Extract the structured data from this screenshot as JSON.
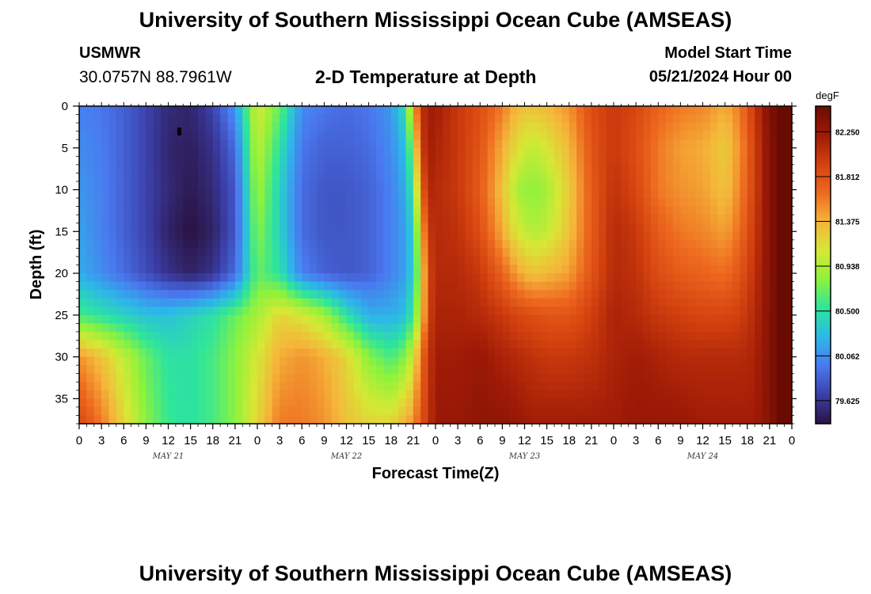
{
  "header": {
    "title": "University of Southern Mississippi Ocean Cube (AMSEAS)",
    "station": "USMWR",
    "coords": "30.0757N  88.7961W",
    "subtitle": "2-D Temperature at Depth",
    "start_label": "Model Start Time",
    "start_value": "05/21/2024 Hour 00"
  },
  "footer": {
    "title": "University of Southern Mississippi Ocean Cube (AMSEAS)"
  },
  "chart_data": {
    "type": "heatmap",
    "title": "2-D Temperature at Depth",
    "xlabel": "Forecast Time(Z)",
    "ylabel": "Depth (ft)",
    "units": "degF",
    "x_range_hours": [
      0,
      96
    ],
    "y_range_ft": [
      0,
      38
    ],
    "x_tick_labels": [
      "0",
      "3",
      "6",
      "9",
      "12",
      "15",
      "18",
      "21",
      "0",
      "3",
      "6",
      "9",
      "12",
      "15",
      "18",
      "21",
      "0",
      "3",
      "6",
      "9",
      "12",
      "15",
      "18",
      "21",
      "0",
      "3",
      "6",
      "9",
      "12",
      "15",
      "18",
      "21",
      "0"
    ],
    "y_tick_labels": [
      "0",
      "5",
      "10",
      "15",
      "20",
      "25",
      "30",
      "35"
    ],
    "y_tick_values": [
      0,
      5,
      10,
      15,
      20,
      25,
      30,
      35
    ],
    "day_labels": [
      {
        "label": "MAY 21",
        "hour": 12
      },
      {
        "label": "MAY 22",
        "hour": 36
      },
      {
        "label": "MAY 23",
        "hour": 60
      },
      {
        "label": "MAY 24",
        "hour": 84
      }
    ],
    "colorbar": {
      "unit": "degF",
      "vmin": 79.4,
      "vmax": 82.5,
      "tick_values": [
        82.25,
        81.812,
        81.375,
        80.938,
        80.5,
        80.062,
        79.625
      ],
      "tick_labels": [
        "82.250",
        "81.812",
        "81.375",
        "80.938",
        "80.500",
        "80.062",
        "79.625"
      ],
      "colors": [
        "#2a1240",
        "#3b3fa8",
        "#4a79f0",
        "#2cb8e8",
        "#2ee59c",
        "#8ef23c",
        "#d6e835",
        "#f5b53a",
        "#ee6a1f",
        "#d3410f",
        "#9e1a06",
        "#6a0b03"
      ]
    },
    "time_profiles": [
      {
        "hour": 0,
        "values": [
          80.0,
          80.05,
          80.1,
          80.15,
          80.2,
          80.6,
          81.5,
          81.9
        ]
      },
      {
        "hour": 3,
        "values": [
          79.95,
          79.98,
          80.0,
          80.0,
          80.05,
          80.5,
          81.3,
          81.6
        ]
      },
      {
        "hour": 6,
        "values": [
          79.85,
          79.85,
          79.85,
          79.85,
          79.9,
          80.4,
          81.0,
          81.2
        ]
      },
      {
        "hour": 9,
        "values": [
          79.7,
          79.7,
          79.7,
          79.7,
          79.75,
          80.3,
          80.7,
          80.8
        ]
      },
      {
        "hour": 12,
        "values": [
          79.55,
          79.52,
          79.55,
          79.5,
          79.6,
          80.3,
          80.5,
          80.55
        ]
      },
      {
        "hour": 15,
        "values": [
          79.52,
          79.48,
          79.45,
          79.4,
          79.5,
          80.4,
          80.5,
          80.5
        ]
      },
      {
        "hour": 18,
        "values": [
          79.7,
          79.6,
          79.55,
          79.5,
          79.6,
          80.5,
          80.6,
          80.6
        ]
      },
      {
        "hour": 21,
        "values": [
          80.1,
          79.9,
          79.8,
          79.8,
          79.9,
          80.7,
          80.8,
          80.8
        ]
      },
      {
        "hour": 24,
        "values": [
          81.1,
          81.0,
          80.9,
          80.8,
          80.7,
          80.9,
          81.1,
          81.2
        ]
      },
      {
        "hour": 27,
        "values": [
          80.7,
          80.5,
          80.4,
          80.4,
          80.5,
          81.2,
          81.4,
          81.6
        ]
      },
      {
        "hour": 30,
        "values": [
          80.05,
          79.95,
          79.9,
          79.9,
          80.0,
          81.1,
          81.5,
          81.6
        ]
      },
      {
        "hour": 33,
        "values": [
          79.95,
          79.85,
          79.8,
          79.8,
          79.85,
          80.9,
          81.4,
          81.5
        ]
      },
      {
        "hour": 36,
        "values": [
          79.9,
          79.85,
          79.8,
          79.8,
          79.8,
          80.5,
          81.2,
          81.3
        ]
      },
      {
        "hour": 39,
        "values": [
          79.95,
          79.9,
          79.85,
          79.85,
          79.85,
          80.2,
          80.8,
          81.2
        ]
      },
      {
        "hour": 42,
        "values": [
          80.1,
          80.05,
          80.0,
          80.0,
          80.0,
          80.2,
          80.6,
          81.2
        ]
      },
      {
        "hour": 44,
        "values": [
          80.5,
          80.3,
          80.2,
          80.15,
          80.15,
          80.3,
          80.8,
          81.4
        ]
      },
      {
        "hour": 45,
        "values": [
          81.3,
          80.9,
          80.6,
          80.4,
          80.4,
          80.6,
          81.1,
          81.5
        ]
      },
      {
        "hour": 46,
        "values": [
          82.0,
          81.9,
          81.6,
          81.2,
          81.0,
          81.1,
          81.6,
          81.8
        ]
      },
      {
        "hour": 47,
        "values": [
          82.2,
          82.2,
          82.15,
          82.0,
          81.9,
          81.9,
          82.0,
          82.0
        ]
      },
      {
        "hour": 48,
        "values": [
          82.2,
          82.15,
          82.1,
          82.1,
          82.1,
          82.15,
          82.2,
          82.25
        ]
      },
      {
        "hour": 51,
        "values": [
          82.0,
          82.0,
          82.0,
          82.05,
          82.1,
          82.15,
          82.2,
          82.25
        ]
      },
      {
        "hour": 54,
        "values": [
          81.85,
          81.8,
          81.75,
          81.85,
          82.0,
          82.1,
          82.25,
          82.3
        ]
      },
      {
        "hour": 57,
        "values": [
          81.6,
          81.4,
          81.3,
          81.4,
          81.7,
          82.0,
          82.15,
          82.3
        ]
      },
      {
        "hour": 59,
        "values": [
          81.35,
          81.15,
          80.9,
          81.1,
          81.45,
          81.9,
          82.1,
          82.25
        ]
      },
      {
        "hour": 61,
        "values": [
          81.3,
          81.0,
          80.8,
          80.95,
          81.3,
          81.85,
          82.05,
          82.2
        ]
      },
      {
        "hour": 63,
        "values": [
          81.35,
          81.1,
          80.9,
          81.0,
          81.35,
          81.8,
          82.0,
          82.2
        ]
      },
      {
        "hour": 66,
        "values": [
          81.5,
          81.35,
          81.25,
          81.3,
          81.45,
          81.8,
          82.0,
          82.2
        ]
      },
      {
        "hour": 69,
        "values": [
          81.85,
          81.8,
          81.75,
          81.75,
          81.8,
          81.95,
          82.05,
          82.2
        ]
      },
      {
        "hour": 72,
        "values": [
          82.0,
          82.0,
          82.05,
          82.1,
          82.1,
          82.15,
          82.15,
          82.2
        ]
      },
      {
        "hour": 75,
        "values": [
          81.9,
          81.85,
          81.9,
          82.0,
          82.05,
          82.1,
          82.2,
          82.25
        ]
      },
      {
        "hour": 78,
        "values": [
          81.7,
          81.6,
          81.6,
          81.75,
          81.85,
          82.0,
          82.15,
          82.25
        ]
      },
      {
        "hour": 81,
        "values": [
          81.6,
          81.45,
          81.5,
          81.6,
          81.75,
          81.95,
          82.1,
          82.25
        ]
      },
      {
        "hour": 84,
        "values": [
          81.55,
          81.4,
          81.45,
          81.55,
          81.7,
          81.9,
          82.1,
          82.2
        ]
      },
      {
        "hour": 87,
        "values": [
          81.4,
          81.25,
          81.3,
          81.45,
          81.65,
          81.9,
          82.1,
          82.2
        ]
      },
      {
        "hour": 89,
        "values": [
          81.6,
          81.5,
          81.55,
          81.65,
          81.8,
          81.95,
          82.1,
          82.2
        ]
      },
      {
        "hour": 91,
        "values": [
          82.0,
          81.95,
          81.95,
          82.0,
          82.05,
          82.1,
          82.15,
          82.2
        ]
      },
      {
        "hour": 93,
        "values": [
          82.4,
          82.35,
          82.35,
          82.35,
          82.35,
          82.35,
          82.35,
          82.35
        ]
      },
      {
        "hour": 95,
        "values": [
          82.55,
          82.55,
          82.55,
          82.55,
          82.55,
          82.55,
          82.55,
          82.55
        ]
      },
      {
        "hour": 96,
        "values": [
          82.45,
          82.45,
          82.45,
          82.45,
          82.45,
          82.45,
          82.45,
          82.45
        ]
      }
    ],
    "profile_depths_ft": [
      0,
      5,
      10,
      15,
      20,
      25,
      30,
      38
    ]
  }
}
